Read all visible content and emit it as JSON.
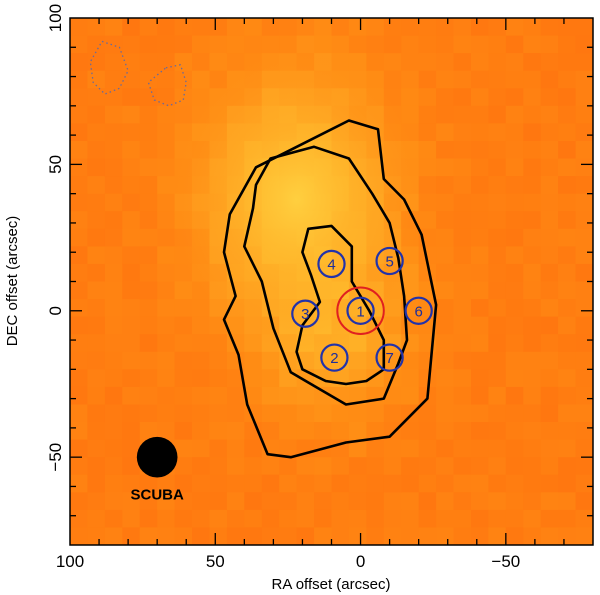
{
  "chart_data": {
    "type": "heatmap",
    "title": "",
    "xlabel": "RA offset (arcsec)",
    "ylabel": "DEC offset (arcsec)",
    "xlim": [
      100,
      -80
    ],
    "ylim": [
      -80,
      100
    ],
    "xticks": [
      100,
      50,
      0,
      -50
    ],
    "yticks": [
      100,
      50,
      0,
      -50
    ],
    "xtick_labels": [
      "100",
      "50",
      "0",
      "−50"
    ],
    "ytick_labels": [
      "100",
      "50",
      "0",
      "−50"
    ],
    "colormap": {
      "low": "#ff5a0a",
      "mid": "#ff8c14",
      "high": "#ffc833"
    },
    "emission_peak": {
      "x": 22,
      "y": 38
    },
    "contours": [
      {
        "level": 1,
        "style": "solid",
        "color": "#000000",
        "points": [
          [
            45,
            33
          ],
          [
            36,
            49
          ],
          [
            24,
            55
          ],
          [
            4,
            65
          ],
          [
            -6,
            62
          ],
          [
            -8,
            45
          ],
          [
            -15,
            38
          ],
          [
            -21,
            26
          ],
          [
            -26,
            2
          ],
          [
            -23,
            -30
          ],
          [
            -10,
            -43
          ],
          [
            5,
            -45
          ],
          [
            24,
            -50
          ],
          [
            32,
            -49
          ],
          [
            39,
            -32
          ],
          [
            42,
            -15
          ],
          [
            47,
            -3
          ],
          [
            43,
            5
          ],
          [
            47,
            20
          ]
        ]
      },
      {
        "level": 2,
        "style": "solid",
        "color": "#000000",
        "points": [
          [
            36,
            43
          ],
          [
            31,
            52
          ],
          [
            16,
            56
          ],
          [
            4,
            52
          ],
          [
            -4,
            40
          ],
          [
            -10,
            30
          ],
          [
            -13,
            18
          ],
          [
            -15,
            5
          ],
          [
            -16,
            -10
          ],
          [
            -13,
            -18
          ],
          [
            -8,
            -30
          ],
          [
            5,
            -32
          ],
          [
            24,
            -21
          ],
          [
            30,
            -6
          ],
          [
            34,
            10
          ],
          [
            40,
            22
          ],
          [
            37,
            35
          ]
        ]
      },
      {
        "level": 3,
        "style": "solid",
        "color": "#000000",
        "points": [
          [
            18,
            28
          ],
          [
            10,
            29
          ],
          [
            3,
            22
          ],
          [
            3,
            10
          ],
          [
            -3,
            0
          ],
          [
            -8,
            -10
          ],
          [
            -8,
            -20
          ],
          [
            -2,
            -24
          ],
          [
            5,
            -25
          ],
          [
            12,
            -24
          ],
          [
            20,
            -20
          ],
          [
            22,
            -14
          ],
          [
            20,
            -5
          ],
          [
            14,
            3
          ],
          [
            17,
            12
          ],
          [
            20,
            20
          ]
        ]
      },
      {
        "level": -1,
        "style": "dotted",
        "color": "#6a6a9a",
        "points": [
          [
            89,
            92
          ],
          [
            83,
            90
          ],
          [
            80,
            82
          ],
          [
            83,
            76
          ],
          [
            88,
            74
          ],
          [
            92,
            78
          ],
          [
            93,
            85
          ]
        ]
      },
      {
        "level": -1,
        "style": "dotted",
        "color": "#6a6a9a",
        "points": [
          [
            67,
            83
          ],
          [
            62,
            84
          ],
          [
            60,
            78
          ],
          [
            61,
            72
          ],
          [
            66,
            70
          ],
          [
            71,
            72
          ],
          [
            73,
            78
          ]
        ]
      }
    ],
    "sources": [
      {
        "label": "1",
        "x": 0,
        "y": 0
      },
      {
        "label": "2",
        "x": 9,
        "y": -16
      },
      {
        "label": "3",
        "x": 19,
        "y": -1
      },
      {
        "label": "4",
        "x": 10,
        "y": 16
      },
      {
        "label": "5",
        "x": -10,
        "y": 17
      },
      {
        "label": "6",
        "x": -20,
        "y": 0
      },
      {
        "label": "7",
        "x": -10,
        "y": -16
      }
    ],
    "source_circle_radius": 4.5,
    "target_circle": {
      "x": 0,
      "y": 0,
      "radius": 8,
      "color": "#e02020"
    },
    "beam": {
      "label": "SCUBA",
      "x": 70,
      "y": -50,
      "radius": 7
    }
  }
}
